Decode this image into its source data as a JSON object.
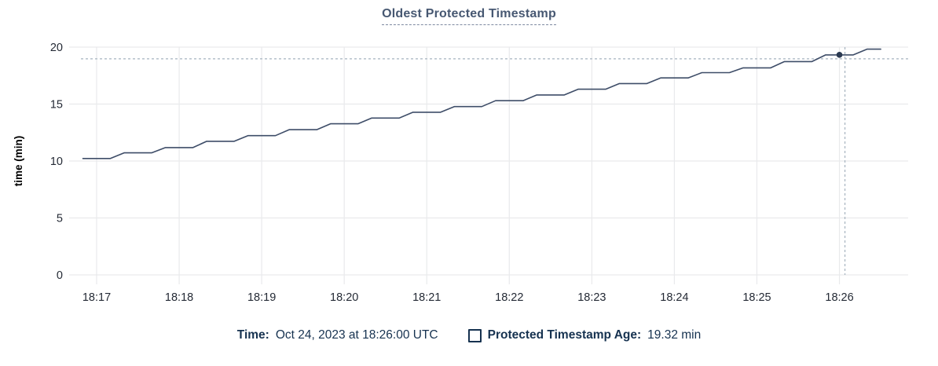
{
  "header": {
    "title": "Oldest Protected Timestamp"
  },
  "chart_data": {
    "type": "line",
    "title": "Oldest Protected Timestamp",
    "xlabel": "",
    "ylabel": "time (min)",
    "ylim": [
      0,
      20
    ],
    "y_ticks": [
      0,
      5,
      10,
      15,
      20
    ],
    "x_tick_labels": [
      "18:17",
      "18:18",
      "18:19",
      "18:20",
      "18:21",
      "18:22",
      "18:23",
      "18:24",
      "18:25",
      "18:26"
    ],
    "grid": true,
    "legend_position": "bottom",
    "series": [
      {
        "name": "Protected Timestamp Age",
        "unit": "min",
        "points": [
          [
            "18:16:50",
            10.22
          ],
          [
            "18:17:00",
            10.22
          ],
          [
            "18:17:10",
            10.22
          ],
          [
            "18:17:20",
            10.72
          ],
          [
            "18:17:30",
            10.72
          ],
          [
            "18:17:40",
            10.72
          ],
          [
            "18:17:50",
            11.18
          ],
          [
            "18:18:00",
            11.18
          ],
          [
            "18:18:10",
            11.18
          ],
          [
            "18:18:20",
            11.73
          ],
          [
            "18:18:30",
            11.73
          ],
          [
            "18:18:40",
            11.73
          ],
          [
            "18:18:50",
            12.23
          ],
          [
            "18:19:00",
            12.23
          ],
          [
            "18:19:10",
            12.23
          ],
          [
            "18:19:20",
            12.75
          ],
          [
            "18:19:30",
            12.75
          ],
          [
            "18:19:40",
            12.75
          ],
          [
            "18:19:50",
            13.27
          ],
          [
            "18:20:00",
            13.27
          ],
          [
            "18:20:10",
            13.27
          ],
          [
            "18:20:20",
            13.77
          ],
          [
            "18:20:30",
            13.77
          ],
          [
            "18:20:40",
            13.77
          ],
          [
            "18:20:50",
            14.28
          ],
          [
            "18:21:00",
            14.28
          ],
          [
            "18:21:10",
            14.28
          ],
          [
            "18:21:20",
            14.78
          ],
          [
            "18:21:30",
            14.78
          ],
          [
            "18:21:40",
            14.78
          ],
          [
            "18:21:50",
            15.3
          ],
          [
            "18:22:00",
            15.3
          ],
          [
            "18:22:10",
            15.3
          ],
          [
            "18:22:20",
            15.8
          ],
          [
            "18:22:30",
            15.8
          ],
          [
            "18:22:40",
            15.8
          ],
          [
            "18:22:50",
            16.3
          ],
          [
            "18:23:00",
            16.3
          ],
          [
            "18:23:10",
            16.3
          ],
          [
            "18:23:20",
            16.8
          ],
          [
            "18:23:30",
            16.8
          ],
          [
            "18:23:40",
            16.8
          ],
          [
            "18:23:50",
            17.3
          ],
          [
            "18:24:00",
            17.3
          ],
          [
            "18:24:10",
            17.3
          ],
          [
            "18:24:20",
            17.76
          ],
          [
            "18:24:30",
            17.76
          ],
          [
            "18:24:40",
            17.76
          ],
          [
            "18:24:50",
            18.18
          ],
          [
            "18:25:00",
            18.18
          ],
          [
            "18:25:10",
            18.18
          ],
          [
            "18:25:20",
            18.73
          ],
          [
            "18:25:30",
            18.73
          ],
          [
            "18:25:40",
            18.73
          ],
          [
            "18:25:50",
            19.32
          ],
          [
            "18:26:00",
            19.32
          ],
          [
            "18:26:10",
            19.32
          ],
          [
            "18:26:20",
            19.82
          ],
          [
            "18:26:30",
            19.82
          ]
        ]
      }
    ],
    "hover": {
      "time": "18:26:00",
      "value": 19.32
    },
    "colors": {
      "line": "#3e4d68",
      "dot": "#2b3a52",
      "grid": "#e9eaec",
      "crosshair": "#a6b3bf",
      "tick_text": "#242a35",
      "axis_label": "#000000",
      "title": "#475872",
      "footer_text": "#163250"
    }
  },
  "footer": {
    "time_label": "Time:",
    "time_value": "Oct 24, 2023 at 18:26:00 UTC",
    "series_label": "Protected Timestamp Age:",
    "series_value": "19.32 min"
  }
}
